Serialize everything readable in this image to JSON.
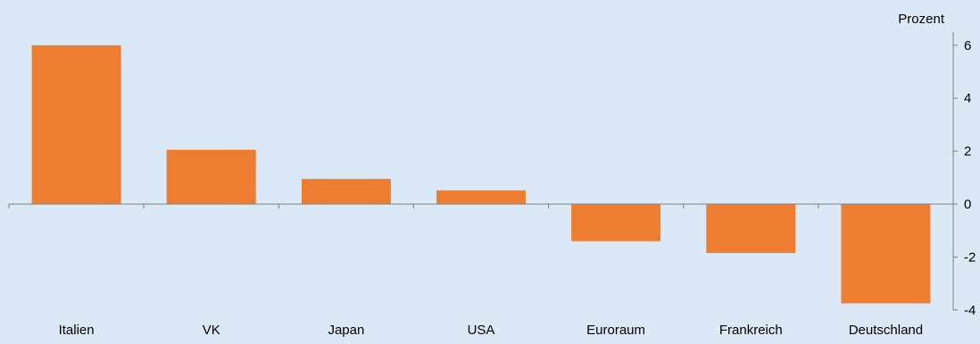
{
  "chart_data": {
    "type": "bar",
    "ylabel": "Prozent",
    "categories": [
      "Italien",
      "VK",
      "Japan",
      "USA",
      "Euroraum",
      "Frankreich",
      "Deutschland"
    ],
    "values": [
      6.0,
      2.05,
      0.95,
      0.52,
      -1.4,
      -1.85,
      -3.75
    ],
    "ylim": [
      -4,
      6.5
    ],
    "yticks": [
      6,
      4,
      2,
      0,
      -2,
      -4
    ],
    "grid": false,
    "legend": "none",
    "colors": {
      "bar": "#ed7d31",
      "background": "#dbe8f6",
      "axis": "#7f7f7f"
    }
  }
}
